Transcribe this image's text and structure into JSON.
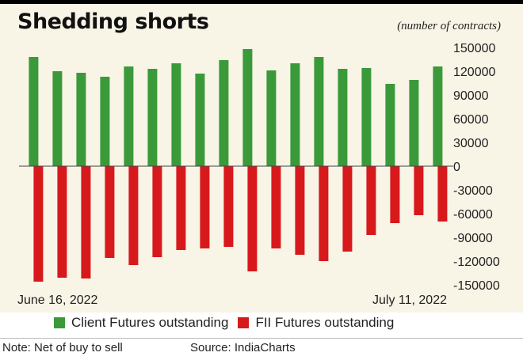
{
  "header": {
    "title": "Shedding shorts",
    "unit": "(number of contracts)"
  },
  "chart_data": {
    "type": "bar",
    "y_ticks": [
      "150000",
      "120000",
      "90000",
      "60000",
      "30000",
      "0",
      "-30000",
      "-60000",
      "-90000",
      "-120000",
      "-150000"
    ],
    "x_tick_labels": [
      "June 16, 2022",
      "July 11, 2022"
    ],
    "ylim": [
      -150000,
      150000
    ],
    "series": [
      {
        "name": "Client Futures outstanding",
        "color": "#3a9a3a",
        "values": [
          138000,
          120000,
          118000,
          113000,
          126000,
          123000,
          130000,
          117000,
          134000,
          148000,
          121000,
          130000,
          138000,
          123000,
          124000,
          104000,
          109000,
          126000
        ]
      },
      {
        "name": "FII Futures outstanding",
        "color": "#d7191c",
        "values": [
          -146000,
          -141000,
          -142000,
          -116000,
          -125000,
          -115000,
          -106000,
          -104000,
          -102000,
          -133000,
          -104000,
          -112000,
          -120000,
          -108000,
          -87000,
          -72000,
          -62000,
          -70000
        ]
      }
    ],
    "grid": false,
    "legend_position": "bottom"
  },
  "legend": {
    "client": "Client Futures outstanding",
    "fii": "FII Futures outstanding"
  },
  "footer": {
    "note": "Note: Net of buy to sell",
    "source": "Source: IndiaCharts"
  }
}
